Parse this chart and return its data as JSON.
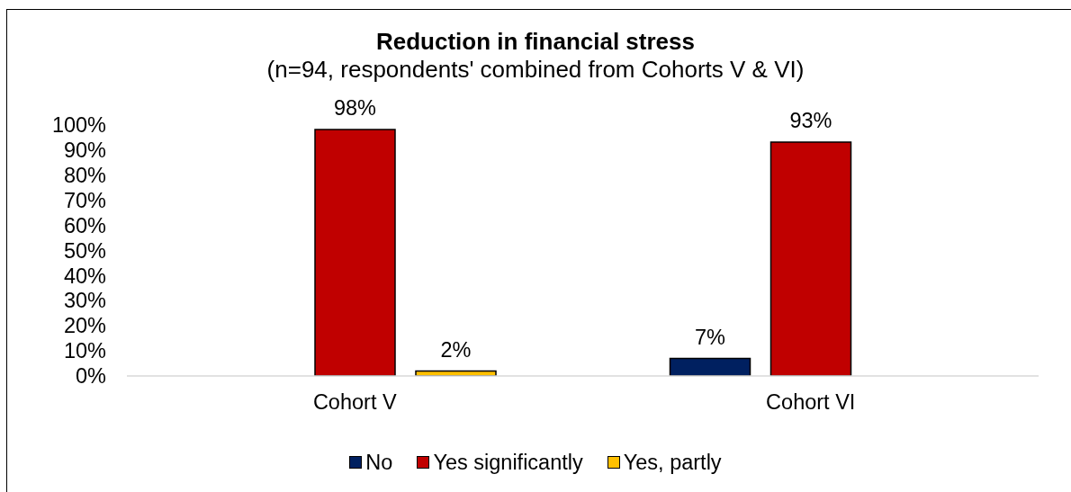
{
  "chart_data": {
    "type": "bar",
    "title": "Reduction in financial stress",
    "subtitle": "(n=94, respondents' combined from Cohorts V & VI)",
    "categories": [
      "Cohort V",
      "Cohort VI"
    ],
    "series": [
      {
        "name": "No",
        "color": "#002060",
        "values": [
          null,
          7
        ],
        "value_labels": [
          null,
          "7%"
        ]
      },
      {
        "name": "Yes significantly",
        "color": "#c00000",
        "values": [
          98,
          93
        ],
        "value_labels": [
          "98%",
          "93%"
        ]
      },
      {
        "name": "Yes, partly",
        "color": "#ffc000",
        "values": [
          2,
          null
        ],
        "value_labels": [
          "2%",
          null
        ]
      }
    ],
    "ylim": [
      0,
      100
    ],
    "yticks": [
      {
        "value": 0,
        "label": "0%"
      },
      {
        "value": 10,
        "label": "10%"
      },
      {
        "value": 20,
        "label": "20%"
      },
      {
        "value": 30,
        "label": "30%"
      },
      {
        "value": 40,
        "label": "40%"
      },
      {
        "value": 50,
        "label": "50%"
      },
      {
        "value": 60,
        "label": "60%"
      },
      {
        "value": 70,
        "label": "70%"
      },
      {
        "value": 80,
        "label": "80%"
      },
      {
        "value": 90,
        "label": "90%"
      },
      {
        "value": 100,
        "label": "100%"
      }
    ],
    "legend": "bottom"
  }
}
